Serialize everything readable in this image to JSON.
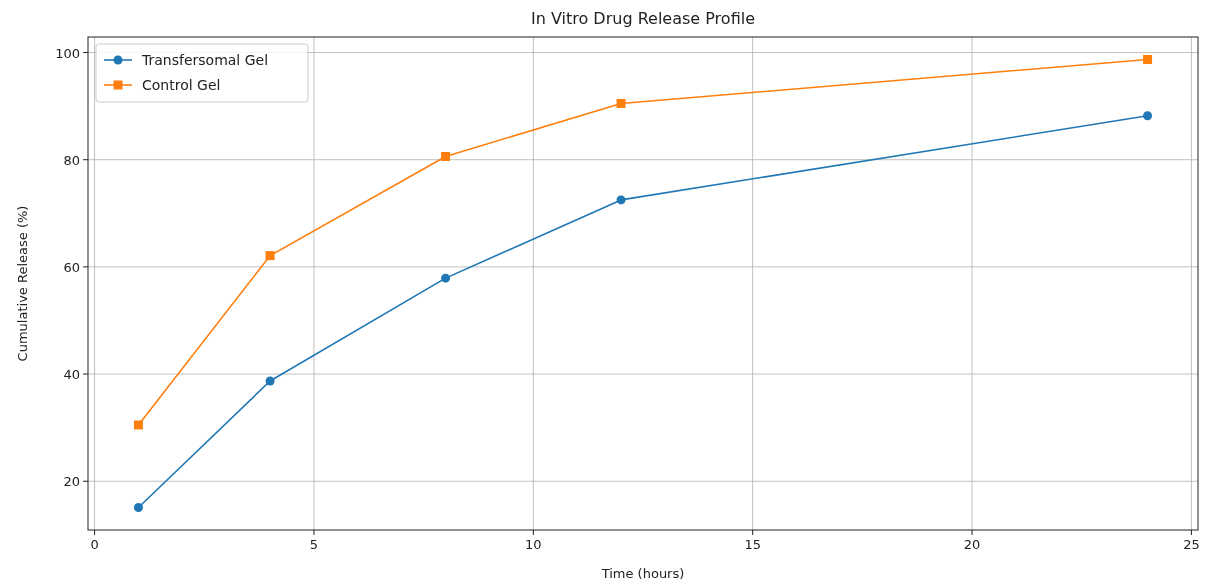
{
  "chart_data": {
    "type": "line",
    "title": "In Vitro Drug Release Profile",
    "xlabel": "Time (hours)",
    "ylabel": "Cumulative Release (%)",
    "x": [
      1,
      4,
      8,
      12,
      24
    ],
    "series": [
      {
        "name": "Transfersomal Gel",
        "color": "#1f77b4",
        "marker": "circle",
        "values": [
          15.1,
          38.7,
          57.9,
          72.5,
          88.2
        ]
      },
      {
        "name": "Control Gel",
        "color": "#ff7f0e",
        "marker": "square",
        "values": [
          30.5,
          62.1,
          80.6,
          90.5,
          98.7
        ]
      }
    ],
    "xlim": [
      -0.15,
      25.15
    ],
    "xticks": [
      0,
      5,
      10,
      15,
      20,
      25
    ],
    "ylim": [
      10.9,
      102.9
    ],
    "yticks": [
      20,
      40,
      60,
      80,
      100
    ],
    "grid": true,
    "legend": "top left",
    "line_style": "solid"
  }
}
